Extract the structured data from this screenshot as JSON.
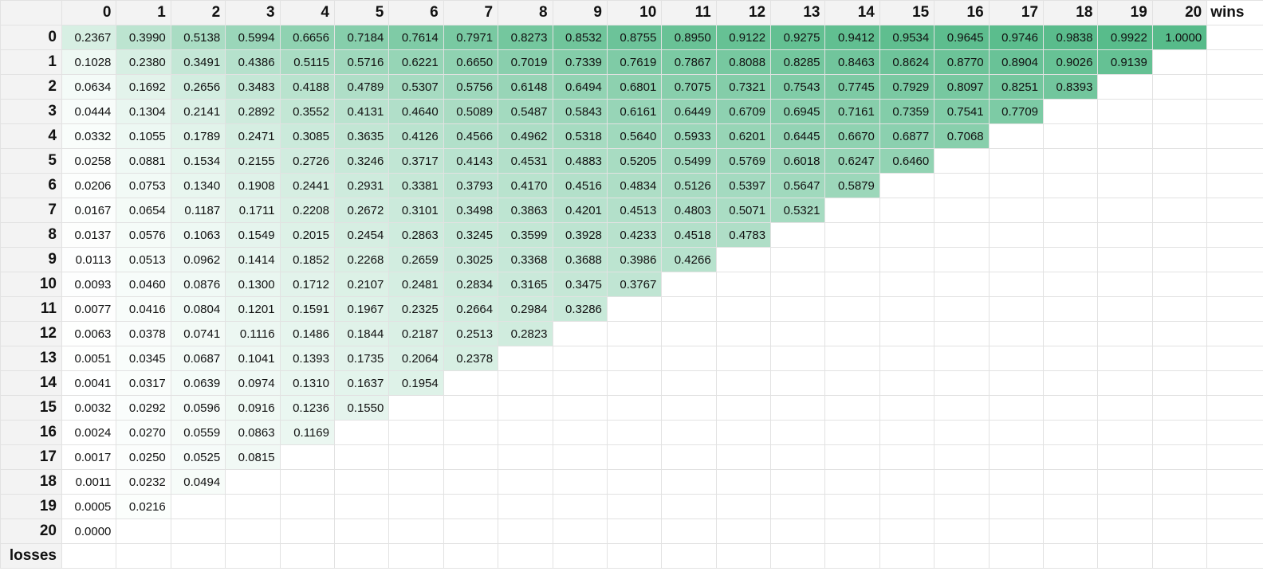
{
  "column_axis_label": "wins",
  "row_axis_label": "losses",
  "columns": [
    "0",
    "1",
    "2",
    "3",
    "4",
    "5",
    "6",
    "7",
    "8",
    "9",
    "10",
    "11",
    "12",
    "13",
    "14",
    "15",
    "16",
    "17",
    "18",
    "19",
    "20"
  ],
  "rows": [
    {
      "label": "0",
      "values": [
        "0.2367",
        "0.3990",
        "0.5138",
        "0.5994",
        "0.6656",
        "0.7184",
        "0.7614",
        "0.7971",
        "0.8273",
        "0.8532",
        "0.8755",
        "0.8950",
        "0.9122",
        "0.9275",
        "0.9412",
        "0.9534",
        "0.9645",
        "0.9746",
        "0.9838",
        "0.9922",
        "1.0000"
      ]
    },
    {
      "label": "1",
      "values": [
        "0.1028",
        "0.2380",
        "0.3491",
        "0.4386",
        "0.5115",
        "0.5716",
        "0.6221",
        "0.6650",
        "0.7019",
        "0.7339",
        "0.7619",
        "0.7867",
        "0.8088",
        "0.8285",
        "0.8463",
        "0.8624",
        "0.8770",
        "0.8904",
        "0.9026",
        "0.9139"
      ]
    },
    {
      "label": "2",
      "values": [
        "0.0634",
        "0.1692",
        "0.2656",
        "0.3483",
        "0.4188",
        "0.4789",
        "0.5307",
        "0.5756",
        "0.6148",
        "0.6494",
        "0.6801",
        "0.7075",
        "0.7321",
        "0.7543",
        "0.7745",
        "0.7929",
        "0.8097",
        "0.8251",
        "0.8393"
      ]
    },
    {
      "label": "3",
      "values": [
        "0.0444",
        "0.1304",
        "0.2141",
        "0.2892",
        "0.3552",
        "0.4131",
        "0.4640",
        "0.5089",
        "0.5487",
        "0.5843",
        "0.6161",
        "0.6449",
        "0.6709",
        "0.6945",
        "0.7161",
        "0.7359",
        "0.7541",
        "0.7709"
      ]
    },
    {
      "label": "4",
      "values": [
        "0.0332",
        "0.1055",
        "0.1789",
        "0.2471",
        "0.3085",
        "0.3635",
        "0.4126",
        "0.4566",
        "0.4962",
        "0.5318",
        "0.5640",
        "0.5933",
        "0.6201",
        "0.6445",
        "0.6670",
        "0.6877",
        "0.7068"
      ]
    },
    {
      "label": "5",
      "values": [
        "0.0258",
        "0.0881",
        "0.1534",
        "0.2155",
        "0.2726",
        "0.3246",
        "0.3717",
        "0.4143",
        "0.4531",
        "0.4883",
        "0.5205",
        "0.5499",
        "0.5769",
        "0.6018",
        "0.6247",
        "0.6460"
      ]
    },
    {
      "label": "6",
      "values": [
        "0.0206",
        "0.0753",
        "0.1340",
        "0.1908",
        "0.2441",
        "0.2931",
        "0.3381",
        "0.3793",
        "0.4170",
        "0.4516",
        "0.4834",
        "0.5126",
        "0.5397",
        "0.5647",
        "0.5879"
      ]
    },
    {
      "label": "7",
      "values": [
        "0.0167",
        "0.0654",
        "0.1187",
        "0.1711",
        "0.2208",
        "0.2672",
        "0.3101",
        "0.3498",
        "0.3863",
        "0.4201",
        "0.4513",
        "0.4803",
        "0.5071",
        "0.5321"
      ]
    },
    {
      "label": "8",
      "values": [
        "0.0137",
        "0.0576",
        "0.1063",
        "0.1549",
        "0.2015",
        "0.2454",
        "0.2863",
        "0.3245",
        "0.3599",
        "0.3928",
        "0.4233",
        "0.4518",
        "0.4783"
      ]
    },
    {
      "label": "9",
      "values": [
        "0.0113",
        "0.0513",
        "0.0962",
        "0.1414",
        "0.1852",
        "0.2268",
        "0.2659",
        "0.3025",
        "0.3368",
        "0.3688",
        "0.3986",
        "0.4266"
      ]
    },
    {
      "label": "10",
      "values": [
        "0.0093",
        "0.0460",
        "0.0876",
        "0.1300",
        "0.1712",
        "0.2107",
        "0.2481",
        "0.2834",
        "0.3165",
        "0.3475",
        "0.3767"
      ]
    },
    {
      "label": "11",
      "values": [
        "0.0077",
        "0.0416",
        "0.0804",
        "0.1201",
        "0.1591",
        "0.1967",
        "0.2325",
        "0.2664",
        "0.2984",
        "0.3286"
      ]
    },
    {
      "label": "12",
      "values": [
        "0.0063",
        "0.0378",
        "0.0741",
        "0.1116",
        "0.1486",
        "0.1844",
        "0.2187",
        "0.2513",
        "0.2823"
      ]
    },
    {
      "label": "13",
      "values": [
        "0.0051",
        "0.0345",
        "0.0687",
        "0.1041",
        "0.1393",
        "0.1735",
        "0.2064",
        "0.2378"
      ]
    },
    {
      "label": "14",
      "values": [
        "0.0041",
        "0.0317",
        "0.0639",
        "0.0974",
        "0.1310",
        "0.1637",
        "0.1954"
      ]
    },
    {
      "label": "15",
      "values": [
        "0.0032",
        "0.0292",
        "0.0596",
        "0.0916",
        "0.1236",
        "0.1550"
      ]
    },
    {
      "label": "16",
      "values": [
        "0.0024",
        "0.0270",
        "0.0559",
        "0.0863",
        "0.1169"
      ]
    },
    {
      "label": "17",
      "values": [
        "0.0017",
        "0.0250",
        "0.0525",
        "0.0815"
      ]
    },
    {
      "label": "18",
      "values": [
        "0.0011",
        "0.0232",
        "0.0494"
      ]
    },
    {
      "label": "19",
      "values": [
        "0.0005",
        "0.0216"
      ]
    },
    {
      "label": "20",
      "values": [
        "0.0000"
      ]
    }
  ],
  "colors": {
    "header_bg": "#f3f3f3",
    "grid_line": "#e2e2e2",
    "scale_low": "#ffffff",
    "scale_high": "#57bb8a"
  }
}
